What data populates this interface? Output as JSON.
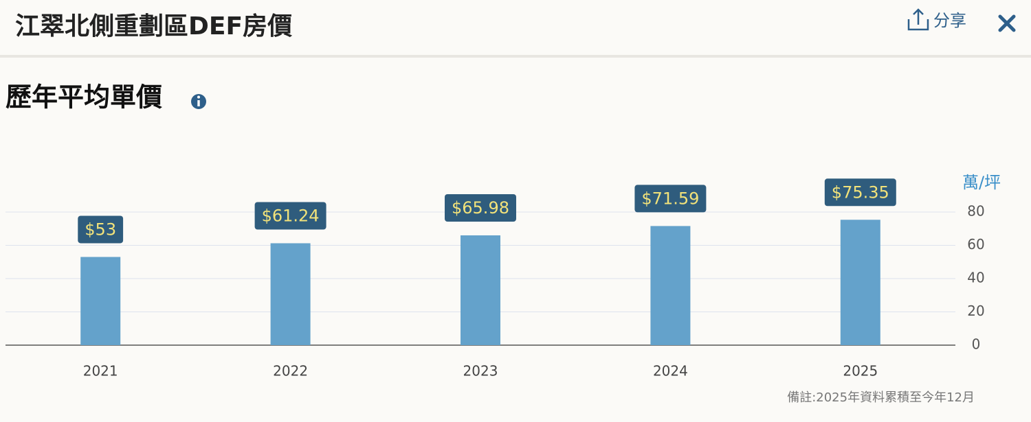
{
  "header": {
    "title": "江翠北側重劃區DEF房價",
    "share": "分享"
  },
  "section": {
    "title": "歷年平均單價"
  },
  "chart_data": {
    "type": "bar",
    "y_label": "萬/坪",
    "categories": [
      "2021",
      "2022",
      "2023",
      "2024",
      "2025"
    ],
    "values": [
      53,
      61.24,
      65.98,
      71.59,
      75.35
    ],
    "value_labels": [
      "$53",
      "$61.24",
      "$65.98",
      "$71.59",
      "$75.35"
    ],
    "color": "#64a2cb",
    "ylim": [
      0,
      80
    ],
    "yticks": [
      0,
      20,
      40,
      60,
      80
    ],
    "grid": true
  },
  "note": "備註:2025年資料累積至今年12月"
}
